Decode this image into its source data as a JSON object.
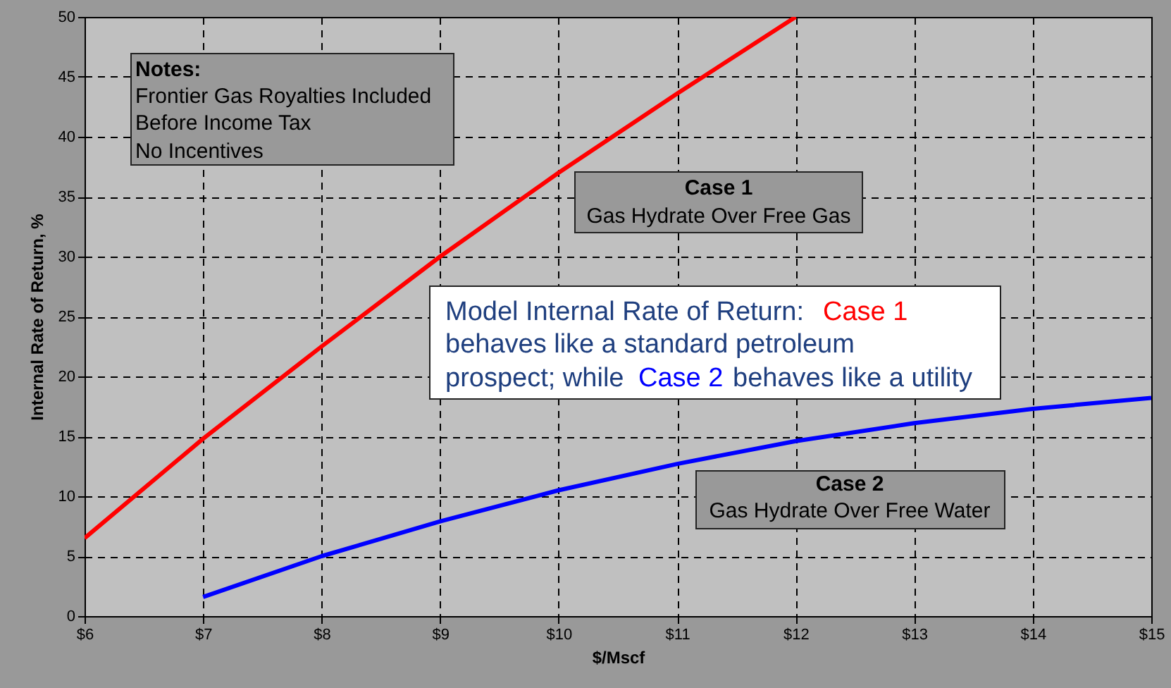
{
  "chart_data": {
    "type": "line",
    "xlabel": "$/Mscf",
    "ylabel": "Internal Rate of Return, %",
    "x": [
      6,
      7,
      8,
      9,
      10,
      11,
      12,
      13,
      14,
      15
    ],
    "series": [
      {
        "color": "#ff0000",
        "values": [
          6.5,
          14.8,
          22.5,
          30,
          37,
          43.6,
          50,
          null,
          null,
          null
        ]
      },
      {
        "color": "#0000ff",
        "values": [
          null,
          1.6,
          5,
          7.9,
          10.5,
          12.7,
          14.6,
          16.1,
          17.3,
          18.2
        ]
      }
    ],
    "xlim": [
      6,
      15
    ],
    "ylim": [
      0,
      50
    ],
    "xticks": [
      {
        "value": 6,
        "label": "$6"
      },
      {
        "value": 7,
        "label": "$7"
      },
      {
        "value": 8,
        "label": "$8"
      },
      {
        "value": 9,
        "label": "$9"
      },
      {
        "value": 10,
        "label": "$10"
      },
      {
        "value": 11,
        "label": "$11"
      },
      {
        "value": 12,
        "label": "$12"
      },
      {
        "value": 13,
        "label": "$13"
      },
      {
        "value": 14,
        "label": "$14"
      },
      {
        "value": 15,
        "label": "$15"
      }
    ],
    "yticks": [
      0,
      5,
      10,
      15,
      20,
      25,
      30,
      35,
      40,
      45,
      50
    ],
    "grid": true,
    "marker": "none",
    "line_style": "solid",
    "annotations": [
      "Notes:",
      "Frontier Gas Royalties Included",
      "Before Income Tax",
      "No Incentives",
      "Case 1",
      "Gas Hydrate Over Free Gas",
      "Model Internal Rate of Return:",
      "Case 1",
      "behaves like a standard petroleum",
      "prospect; while",
      "Case 2",
      "behaves like a utility",
      "Case 2",
      "Gas Hydrate Over Free Water"
    ]
  }
}
